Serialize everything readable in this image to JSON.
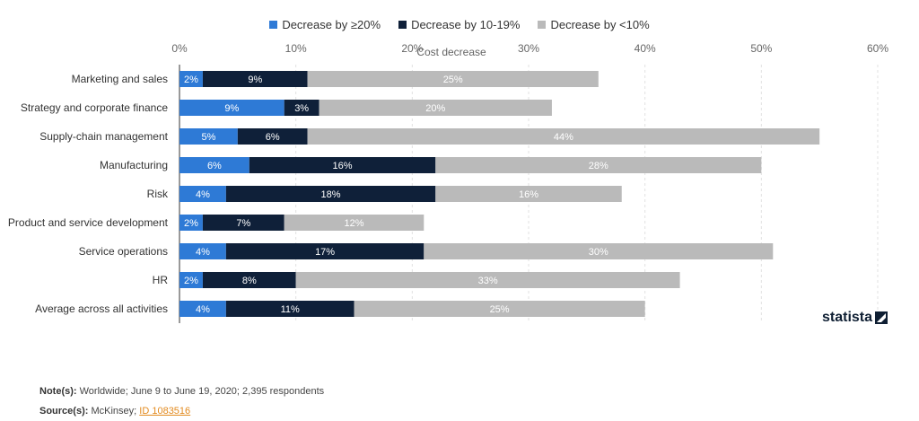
{
  "chart_data": {
    "type": "bar",
    "orientation": "horizontal",
    "stacked": true,
    "xlabel": "Cost decrease",
    "ylabel": "",
    "xlim": [
      0,
      60
    ],
    "x_ticks": [
      "0%",
      "10%",
      "20%",
      "30%",
      "40%",
      "50%",
      "60%"
    ],
    "grid": true,
    "legend_position": "top",
    "categories": [
      "Marketing and sales",
      "Strategy and corporate finance",
      "Supply-chain management",
      "Manufacturing",
      "Risk",
      "Product and service development",
      "Service operations",
      "HR",
      "Average across all activities"
    ],
    "series": [
      {
        "name": "Decrease by ≥20%",
        "color": "#2e7ad6",
        "values": [
          2,
          9,
          5,
          6,
          4,
          2,
          4,
          2,
          4
        ]
      },
      {
        "name": "Decrease by 10-19%",
        "color": "#0f2039",
        "values": [
          9,
          3,
          6,
          16,
          18,
          7,
          17,
          8,
          11
        ]
      },
      {
        "name": "Decrease by <10%",
        "color": "#bababa",
        "values": [
          25,
          20,
          44,
          28,
          16,
          12,
          30,
          33,
          25
        ]
      }
    ]
  },
  "branding": {
    "logo_text": "statista"
  },
  "footer": {
    "note_label": "Note(s):",
    "note_text": "Worldwide; June 9 to June 19, 2020; 2,395 respondents",
    "source_label": "Source(s):",
    "source_text": "McKinsey;",
    "source_link": "ID 1083516"
  }
}
